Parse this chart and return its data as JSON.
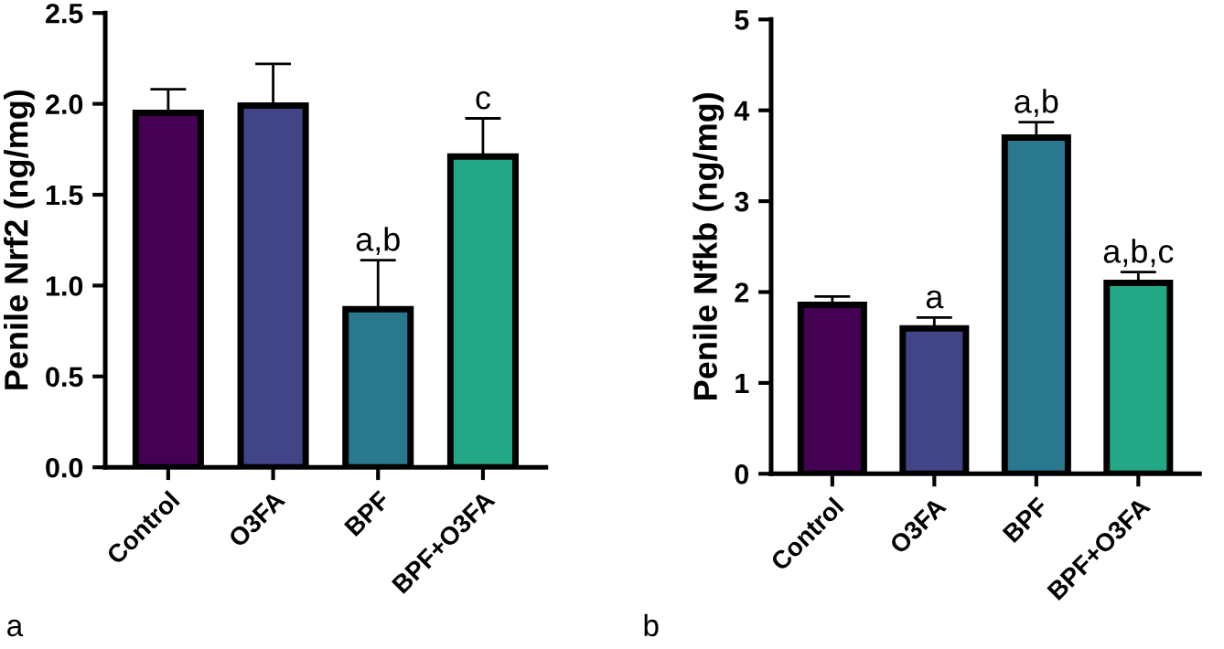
{
  "chart_data": [
    {
      "type": "bar",
      "ylabel": "Penile Nrf2 (ng/mg)",
      "categories": [
        "Control",
        "O3FA",
        "BPF",
        "BPF+O3FA"
      ],
      "values": [
        1.95,
        1.99,
        0.87,
        1.71
      ],
      "errors": [
        0.13,
        0.23,
        0.27,
        0.21
      ],
      "value_labels": [
        null,
        null,
        "a,b",
        "c"
      ],
      "colors": [
        "#440154",
        "#414487",
        "#2a788e",
        "#22a884"
      ],
      "ylim": [
        0,
        2.5
      ],
      "yticks": [
        {
          "value": 0,
          "label": "0.0"
        },
        {
          "value": 0.5,
          "label": "0.5"
        },
        {
          "value": 1,
          "label": "1.0"
        },
        {
          "value": 1.5,
          "label": "1.5"
        },
        {
          "value": 2,
          "label": "2.0"
        },
        {
          "value": 2.5,
          "label": "2.5"
        }
      ],
      "grid": false,
      "annotations": [
        "a"
      ]
    },
    {
      "type": "bar",
      "ylabel": "Penile Nfkb (ng/mg)",
      "categories": [
        "Control",
        "O3FA",
        "BPF",
        "BPF+O3FA"
      ],
      "values": [
        1.86,
        1.6,
        3.7,
        2.1
      ],
      "errors": [
        0.09,
        0.12,
        0.17,
        0.12
      ],
      "value_labels": [
        null,
        "a",
        "a,b",
        "a,b,c"
      ],
      "colors": [
        "#440154",
        "#414487",
        "#2a788e",
        "#22a884"
      ],
      "ylim": [
        0,
        5
      ],
      "yticks": [
        0,
        1,
        2,
        3,
        4,
        5
      ],
      "grid": false,
      "annotations": [
        "b"
      ]
    }
  ]
}
